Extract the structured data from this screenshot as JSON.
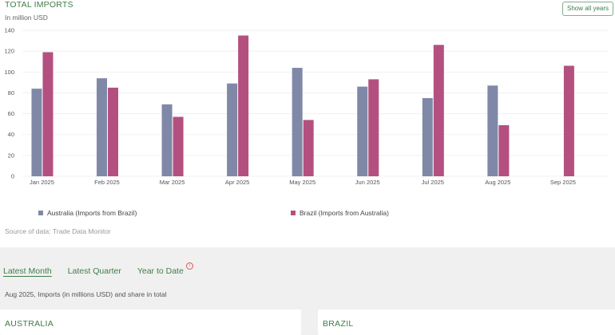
{
  "header": {
    "title": "TOTAL IMPORTS",
    "subtitle": "In million USD",
    "show_all_label": "Show all years"
  },
  "colors": {
    "australia": "#8088a8",
    "brazil": "#b4507f",
    "accent": "#3f7d4a"
  },
  "chart_data": {
    "type": "bar",
    "categories": [
      "Jan 2025",
      "Feb 2025",
      "Mar 2025",
      "Apr 2025",
      "May 2025",
      "Jun 2025",
      "Jul 2025",
      "Aug 2025",
      "Sep 2025"
    ],
    "series": [
      {
        "name": "Australia (Imports from Brazil)",
        "values": [
          84,
          94,
          69,
          89,
          104,
          86,
          75,
          87,
          null
        ]
      },
      {
        "name": "Brazil (Imports from Australia)",
        "values": [
          119,
          85,
          57,
          135,
          54,
          93,
          126,
          49,
          106
        ]
      }
    ],
    "y_ticks": [
      "0",
      "20",
      "40",
      "60",
      "80",
      "100",
      "120",
      "140"
    ],
    "ylim": [
      0,
      140
    ],
    "grid": true,
    "legend_position": "bottom"
  },
  "source": "Source of data: Trade Data Monitor",
  "tabs": [
    {
      "label": "Latest Month",
      "active": true
    },
    {
      "label": "Latest Quarter",
      "active": false
    },
    {
      "label": "Year to Date",
      "active": false
    }
  ],
  "info_icon": "info-icon",
  "caption": "Aug 2025, Imports (in millions USD) and share in total",
  "cards": {
    "australia": "AUSTRALIA",
    "brazil": "BRAZIL"
  }
}
